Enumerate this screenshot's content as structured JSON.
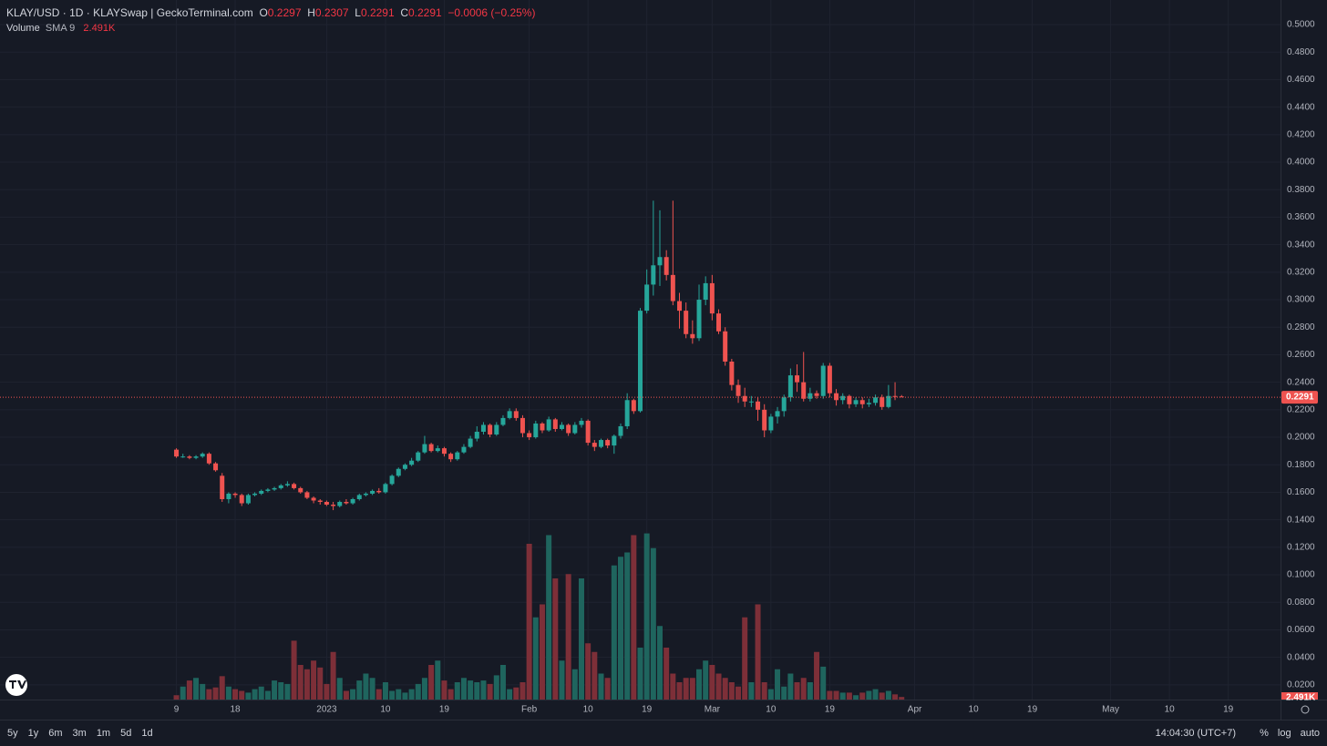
{
  "chart_data": {
    "type": "candlestick",
    "title": "KLAY/USD · 1D · KLAYSwap | GeckoTerminal.com",
    "ohlc_labels": [
      "O",
      "H",
      "L",
      "C"
    ],
    "change": "−0.0006 (−0.25%)",
    "volume_indicator": {
      "name": "Volume",
      "params": "SMA 9",
      "value": "2.491K"
    },
    "up_color": "#26a69a",
    "down_color": "#ef5350",
    "volume_up_color": "#1f655e",
    "volume_down_color": "#7d2f38",
    "grid": true,
    "xlim": [
      "2022-11-12",
      "2023-05-27"
    ],
    "xticks": [
      {
        "value": "2022-12-09",
        "label": "9"
      },
      {
        "value": "2022-12-18",
        "label": "18"
      },
      {
        "value": "2023-01-01",
        "label": "2023"
      },
      {
        "value": "2023-01-10",
        "label": "10"
      },
      {
        "value": "2023-01-19",
        "label": "19"
      },
      {
        "value": "2023-02-01",
        "label": "Feb"
      },
      {
        "value": "2023-02-10",
        "label": "10"
      },
      {
        "value": "2023-02-19",
        "label": "19"
      },
      {
        "value": "2023-03-01",
        "label": "Mar"
      },
      {
        "value": "2023-03-10",
        "label": "10"
      },
      {
        "value": "2023-03-19",
        "label": "19"
      },
      {
        "value": "2023-04-01",
        "label": "Apr"
      },
      {
        "value": "2023-04-10",
        "label": "10"
      },
      {
        "value": "2023-04-19",
        "label": "19"
      },
      {
        "value": "2023-05-01",
        "label": "May"
      },
      {
        "value": "2023-05-10",
        "label": "10"
      },
      {
        "value": "2023-05-19",
        "label": "19"
      }
    ],
    "ylim": [
      0.0093,
      0.5179
    ],
    "yticks": [
      {
        "value": 0.02,
        "label": "0.0200"
      },
      {
        "value": 0.04,
        "label": "0.0400"
      },
      {
        "value": 0.06,
        "label": "0.0600"
      },
      {
        "value": 0.08,
        "label": "0.0800"
      },
      {
        "value": 0.1,
        "label": "0.1000"
      },
      {
        "value": 0.12,
        "label": "0.1200"
      },
      {
        "value": 0.14,
        "label": "0.1400"
      },
      {
        "value": 0.16,
        "label": "0.1600"
      },
      {
        "value": 0.18,
        "label": "0.1800"
      },
      {
        "value": 0.2,
        "label": "0.2000"
      },
      {
        "value": 0.22,
        "label": "0.2200"
      },
      {
        "value": 0.24,
        "label": "0.2400"
      },
      {
        "value": 0.26,
        "label": "0.2600"
      },
      {
        "value": 0.28,
        "label": "0.2800"
      },
      {
        "value": 0.3,
        "label": "0.3000"
      },
      {
        "value": 0.32,
        "label": "0.3200"
      },
      {
        "value": 0.34,
        "label": "0.3400"
      },
      {
        "value": 0.36,
        "label": "0.3600"
      },
      {
        "value": 0.38,
        "label": "0.3800"
      },
      {
        "value": 0.4,
        "label": "0.4000"
      },
      {
        "value": 0.42,
        "label": "0.4200"
      },
      {
        "value": 0.44,
        "label": "0.4400"
      },
      {
        "value": 0.46,
        "label": "0.4600"
      },
      {
        "value": 0.48,
        "label": "0.4800"
      },
      {
        "value": 0.5,
        "label": "0.5000"
      }
    ],
    "volume_lim": [
      0,
      60000
    ],
    "x": [
      "2022-12-09",
      "2022-12-10",
      "2022-12-11",
      "2022-12-12",
      "2022-12-13",
      "2022-12-14",
      "2022-12-15",
      "2022-12-16",
      "2022-12-17",
      "2022-12-18",
      "2022-12-19",
      "2022-12-20",
      "2022-12-21",
      "2022-12-22",
      "2022-12-23",
      "2022-12-24",
      "2022-12-25",
      "2022-12-26",
      "2022-12-27",
      "2022-12-28",
      "2022-12-29",
      "2022-12-30",
      "2022-12-31",
      "2023-01-01",
      "2023-01-02",
      "2023-01-03",
      "2023-01-04",
      "2023-01-05",
      "2023-01-06",
      "2023-01-07",
      "2023-01-08",
      "2023-01-09",
      "2023-01-10",
      "2023-01-11",
      "2023-01-12",
      "2023-01-13",
      "2023-01-14",
      "2023-01-15",
      "2023-01-16",
      "2023-01-17",
      "2023-01-18",
      "2023-01-19",
      "2023-01-20",
      "2023-01-21",
      "2023-01-22",
      "2023-01-23",
      "2023-01-24",
      "2023-01-25",
      "2023-01-26",
      "2023-01-27",
      "2023-01-28",
      "2023-01-29",
      "2023-01-30",
      "2023-01-31",
      "2023-02-01",
      "2023-02-02",
      "2023-02-03",
      "2023-02-04",
      "2023-02-05",
      "2023-02-06",
      "2023-02-07",
      "2023-02-08",
      "2023-02-09",
      "2023-02-10",
      "2023-02-11",
      "2023-02-12",
      "2023-02-13",
      "2023-02-14",
      "2023-02-15",
      "2023-02-16",
      "2023-02-17",
      "2023-02-18",
      "2023-02-19",
      "2023-02-20",
      "2023-02-21",
      "2023-02-22",
      "2023-02-23",
      "2023-02-24",
      "2023-02-25",
      "2023-02-26",
      "2023-02-27",
      "2023-02-28",
      "2023-03-01",
      "2023-03-02",
      "2023-03-03",
      "2023-03-04",
      "2023-03-05",
      "2023-03-06",
      "2023-03-07",
      "2023-03-08",
      "2023-03-09",
      "2023-03-10",
      "2023-03-11",
      "2023-03-12",
      "2023-03-13",
      "2023-03-14",
      "2023-03-15",
      "2023-03-16",
      "2023-03-17",
      "2023-03-18",
      "2023-03-19",
      "2023-03-20",
      "2023-03-21",
      "2023-03-22",
      "2023-03-23",
      "2023-03-24",
      "2023-03-25",
      "2023-03-26",
      "2023-03-27",
      "2023-03-28",
      "2023-03-29",
      "2023-03-30"
    ],
    "open": [
      0.191,
      0.186,
      0.186,
      0.185,
      0.186,
      0.188,
      0.181,
      0.172,
      0.155,
      0.159,
      0.158,
      0.152,
      0.158,
      0.159,
      0.161,
      0.162,
      0.163,
      0.165,
      0.166,
      0.163,
      0.16,
      0.156,
      0.154,
      0.153,
      0.151,
      0.15,
      0.153,
      0.152,
      0.155,
      0.158,
      0.159,
      0.161,
      0.16,
      0.166,
      0.172,
      0.177,
      0.18,
      0.183,
      0.189,
      0.195,
      0.19,
      0.192,
      0.188,
      0.184,
      0.189,
      0.193,
      0.199,
      0.204,
      0.209,
      0.202,
      0.209,
      0.214,
      0.219,
      0.214,
      0.203,
      0.2,
      0.21,
      0.205,
      0.213,
      0.206,
      0.209,
      0.203,
      0.209,
      0.212,
      0.196,
      0.193,
      0.198,
      0.194,
      0.201,
      0.208,
      0.227,
      0.219,
      0.292,
      0.311,
      0.325,
      0.331,
      0.318,
      0.299,
      0.292,
      0.275,
      0.272,
      0.3,
      0.312,
      0.29,
      0.277,
      0.255,
      0.238,
      0.23,
      0.226,
      0.226,
      0.22,
      0.205,
      0.215,
      0.219,
      0.229,
      0.245,
      0.24,
      0.228,
      0.232,
      0.23,
      0.252,
      0.232,
      0.227,
      0.23,
      0.224,
      0.227,
      0.224,
      0.225,
      0.229,
      0.222,
      0.23,
      0.2297
    ],
    "high": [
      0.192,
      0.188,
      0.187,
      0.187,
      0.189,
      0.189,
      0.182,
      0.174,
      0.16,
      0.16,
      0.159,
      0.159,
      0.16,
      0.162,
      0.163,
      0.164,
      0.166,
      0.168,
      0.167,
      0.164,
      0.161,
      0.157,
      0.155,
      0.154,
      0.153,
      0.154,
      0.155,
      0.156,
      0.159,
      0.16,
      0.162,
      0.163,
      0.167,
      0.173,
      0.178,
      0.181,
      0.185,
      0.19,
      0.201,
      0.196,
      0.194,
      0.193,
      0.189,
      0.19,
      0.195,
      0.201,
      0.208,
      0.211,
      0.21,
      0.211,
      0.216,
      0.221,
      0.221,
      0.216,
      0.205,
      0.212,
      0.211,
      0.215,
      0.214,
      0.211,
      0.21,
      0.211,
      0.214,
      0.213,
      0.198,
      0.199,
      0.199,
      0.202,
      0.21,
      0.232,
      0.228,
      0.294,
      0.322,
      0.372,
      0.365,
      0.336,
      0.372,
      0.305,
      0.298,
      0.285,
      0.311,
      0.317,
      0.318,
      0.293,
      0.28,
      0.257,
      0.242,
      0.236,
      0.23,
      0.229,
      0.224,
      0.217,
      0.222,
      0.231,
      0.25,
      0.253,
      0.262,
      0.236,
      0.234,
      0.254,
      0.254,
      0.235,
      0.232,
      0.231,
      0.229,
      0.229,
      0.228,
      0.231,
      0.231,
      0.238,
      0.24,
      0.2307
    ],
    "low": [
      0.185,
      0.185,
      0.184,
      0.184,
      0.185,
      0.18,
      0.175,
      0.153,
      0.152,
      0.156,
      0.15,
      0.151,
      0.157,
      0.158,
      0.16,
      0.161,
      0.162,
      0.164,
      0.162,
      0.159,
      0.155,
      0.152,
      0.151,
      0.15,
      0.147,
      0.149,
      0.151,
      0.151,
      0.154,
      0.157,
      0.158,
      0.159,
      0.159,
      0.165,
      0.171,
      0.176,
      0.179,
      0.182,
      0.188,
      0.189,
      0.189,
      0.186,
      0.182,
      0.183,
      0.188,
      0.192,
      0.197,
      0.202,
      0.2,
      0.201,
      0.208,
      0.213,
      0.212,
      0.2,
      0.198,
      0.199,
      0.203,
      0.204,
      0.204,
      0.205,
      0.201,
      0.202,
      0.207,
      0.194,
      0.19,
      0.192,
      0.192,
      0.188,
      0.199,
      0.206,
      0.217,
      0.218,
      0.29,
      0.303,
      0.31,
      0.314,
      0.296,
      0.279,
      0.272,
      0.268,
      0.27,
      0.296,
      0.285,
      0.275,
      0.252,
      0.234,
      0.225,
      0.222,
      0.222,
      0.212,
      0.2,
      0.203,
      0.21,
      0.215,
      0.226,
      0.233,
      0.226,
      0.226,
      0.228,
      0.228,
      0.229,
      0.223,
      0.224,
      0.221,
      0.222,
      0.221,
      0.222,
      0.223,
      0.22,
      0.221,
      0.227,
      0.2291
    ],
    "close": [
      0.186,
      0.186,
      0.185,
      0.186,
      0.188,
      0.181,
      0.176,
      0.155,
      0.159,
      0.158,
      0.152,
      0.158,
      0.159,
      0.161,
      0.162,
      0.163,
      0.165,
      0.166,
      0.163,
      0.16,
      0.156,
      0.154,
      0.153,
      0.151,
      0.15,
      0.153,
      0.152,
      0.155,
      0.158,
      0.159,
      0.161,
      0.16,
      0.166,
      0.172,
      0.177,
      0.18,
      0.183,
      0.189,
      0.195,
      0.19,
      0.192,
      0.188,
      0.184,
      0.189,
      0.193,
      0.199,
      0.204,
      0.209,
      0.202,
      0.209,
      0.214,
      0.219,
      0.214,
      0.203,
      0.2,
      0.21,
      0.205,
      0.213,
      0.206,
      0.209,
      0.203,
      0.209,
      0.212,
      0.196,
      0.193,
      0.198,
      0.194,
      0.201,
      0.208,
      0.227,
      0.219,
      0.292,
      0.311,
      0.325,
      0.331,
      0.318,
      0.299,
      0.292,
      0.275,
      0.272,
      0.3,
      0.312,
      0.29,
      0.277,
      0.255,
      0.238,
      0.23,
      0.226,
      0.226,
      0.22,
      0.205,
      0.215,
      0.219,
      0.229,
      0.245,
      0.24,
      0.228,
      0.232,
      0.23,
      0.252,
      0.232,
      0.227,
      0.23,
      0.224,
      0.227,
      0.224,
      0.225,
      0.229,
      0.222,
      0.23,
      0.2297,
      0.2291
    ],
    "volume": [
      1500,
      4500,
      6600,
      7500,
      5400,
      3600,
      4200,
      8100,
      4500,
      3600,
      3000,
      2400,
      3600,
      4500,
      3000,
      6600,
      6000,
      5400,
      20400,
      12000,
      10500,
      13500,
      11100,
      5400,
      16500,
      7500,
      3000,
      3600,
      6600,
      9000,
      7500,
      3600,
      6000,
      3000,
      3600,
      2400,
      3600,
      5400,
      7500,
      12000,
      13500,
      6600,
      3600,
      6000,
      7500,
      6600,
      6000,
      6600,
      5400,
      8400,
      12000,
      3600,
      4200,
      6000,
      54000,
      28500,
      33000,
      57000,
      42000,
      13500,
      43500,
      10500,
      42000,
      19500,
      16500,
      9000,
      7500,
      46500,
      49500,
      51000,
      57000,
      18000,
      57600,
      52500,
      25500,
      18000,
      9000,
      6000,
      7500,
      7500,
      10500,
      13500,
      12000,
      9000,
      7500,
      6000,
      4500,
      28500,
      6000,
      33000,
      6000,
      3600,
      10500,
      4500,
      9000,
      6000,
      7500,
      6000,
      16500,
      11400,
      3000,
      3000,
      2400,
      2400,
      1500,
      2400,
      3000,
      3600,
      2400,
      3000,
      1800,
      900
    ]
  },
  "toolbar": {
    "ranges": [
      "5y",
      "1y",
      "6m",
      "3m",
      "1m",
      "5d",
      "1d"
    ],
    "time": "14:04:30 (UTC+7)",
    "options": [
      "%",
      "log",
      "auto"
    ]
  }
}
